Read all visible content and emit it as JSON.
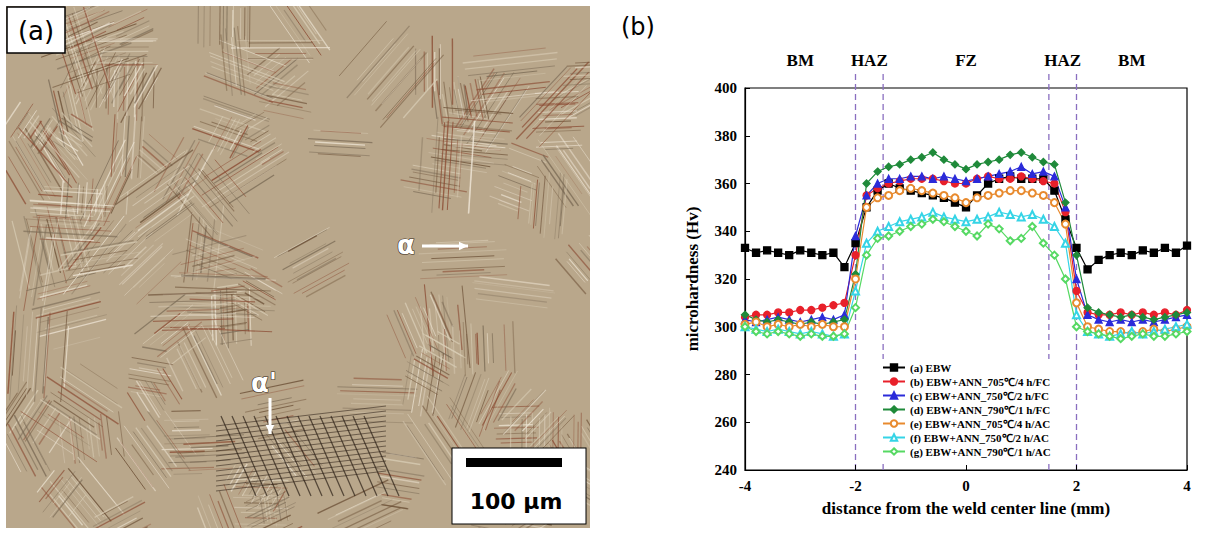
{
  "micrograph": {
    "panel_label": "(a)",
    "annotations": [
      "α",
      "α'"
    ],
    "scale_bar": "100 μm"
  },
  "chart_data": {
    "type": "line",
    "panel_label": "(b)",
    "x_label": "distance from the weld center line (mm)",
    "y_label": "microhardness (Hv)",
    "xlim": [
      -4,
      4
    ],
    "xticks": [
      -4,
      -2,
      0,
      2,
      4
    ],
    "ylim": [
      240,
      400
    ],
    "yticks": [
      240,
      260,
      280,
      300,
      320,
      340,
      360,
      380,
      400
    ],
    "grid": false,
    "legend": "bottom",
    "zones": [
      {
        "label": "BM",
        "from": -4,
        "to": -2
      },
      {
        "label": "HAZ",
        "from": -2,
        "to": -1.5
      },
      {
        "label": "FZ",
        "from": -1.5,
        "to": 1.5
      },
      {
        "label": "HAZ",
        "from": 1.5,
        "to": 2
      },
      {
        "label": "BM",
        "from": 2,
        "to": 4
      }
    ],
    "x": [
      -4,
      -3.8,
      -3.6,
      -3.4,
      -3.2,
      -3,
      -2.8,
      -2.6,
      -2.4,
      -2.2,
      -2,
      -1.8,
      -1.6,
      -1.4,
      -1.2,
      -1,
      -0.8,
      -0.6,
      -0.4,
      -0.2,
      0,
      0.2,
      0.4,
      0.6,
      0.8,
      1,
      1.2,
      1.4,
      1.6,
      1.8,
      2,
      2.2,
      2.4,
      2.6,
      2.8,
      3,
      3.2,
      3.4,
      3.6,
      3.8,
      4
    ],
    "series": [
      {
        "name": "(a) EBW",
        "color": "#000000",
        "marker": "square",
        "values": [
          333,
          331,
          332,
          331,
          330,
          332,
          331,
          330,
          331,
          325,
          335,
          350,
          357,
          360,
          358,
          357,
          356,
          355,
          354,
          352,
          350,
          355,
          360,
          362,
          363,
          362,
          362,
          362,
          357,
          345,
          333,
          324,
          328,
          330,
          331,
          330,
          332,
          331,
          333,
          331,
          334
        ]
      },
      {
        "name": "(b) EBW+ANN_705℃/4 h/FC",
        "color": "#e8202a",
        "marker": "circle",
        "values": [
          304,
          305,
          305,
          306,
          306,
          307,
          307,
          308,
          309,
          310,
          330,
          355,
          358,
          360,
          361,
          362,
          362,
          362,
          361,
          360,
          360,
          362,
          363,
          362,
          362,
          363,
          362,
          361,
          360,
          348,
          315,
          306,
          305,
          305,
          306,
          305,
          306,
          305,
          306,
          305,
          307
        ]
      },
      {
        "name": "(c) EBW+ANN_750℃/2 h/FC",
        "color": "#2b2bd9",
        "marker": "triangle",
        "values": [
          303,
          302,
          303,
          304,
          303,
          302,
          303,
          304,
          303,
          305,
          338,
          355,
          360,
          362,
          362,
          363,
          363,
          362,
          363,
          362,
          361,
          362,
          363,
          364,
          365,
          367,
          364,
          365,
          363,
          350,
          320,
          305,
          303,
          302,
          303,
          302,
          303,
          302,
          303,
          304,
          305
        ]
      },
      {
        "name": "(d) EBW+ANN_790℃/1 h/FC",
        "color": "#1f8a3a",
        "marker": "diamond",
        "values": [
          305,
          303,
          302,
          303,
          302,
          301,
          302,
          301,
          302,
          303,
          322,
          360,
          365,
          367,
          368,
          370,
          371,
          373,
          370,
          368,
          366,
          368,
          369,
          370,
          372,
          373,
          371,
          369,
          368,
          352,
          330,
          308,
          306,
          305,
          304,
          305,
          304,
          303,
          304,
          305,
          306
        ]
      },
      {
        "name": "(e) EBW+ANN_705℃/4 h/AC",
        "color": "#e88a2e",
        "marker": "open-circle",
        "values": [
          301,
          302,
          300,
          301,
          300,
          301,
          300,
          301,
          300,
          300,
          320,
          350,
          354,
          355,
          357,
          358,
          357,
          356,
          355,
          354,
          352,
          354,
          355,
          356,
          357,
          357,
          356,
          355,
          352,
          343,
          310,
          300,
          299,
          298,
          298,
          297,
          298,
          299,
          298,
          299,
          300
        ]
      },
      {
        "name": "(f) EBW+ANN_750℃/2 h/AC",
        "color": "#35d4e6",
        "marker": "open-triangle",
        "values": [
          300,
          299,
          298,
          299,
          298,
          297,
          298,
          297,
          296,
          297,
          315,
          335,
          340,
          342,
          344,
          345,
          346,
          348,
          346,
          345,
          344,
          345,
          346,
          348,
          347,
          346,
          347,
          345,
          342,
          335,
          305,
          298,
          297,
          296,
          297,
          298,
          297,
          298,
          299,
          300,
          301
        ]
      },
      {
        "name": "(g) EBW+ANN_790℃/1 h/AC",
        "color": "#56d963",
        "marker": "open-diamond",
        "values": [
          300,
          298,
          297,
          298,
          297,
          296,
          297,
          296,
          296,
          297,
          308,
          330,
          337,
          338,
          340,
          342,
          343,
          345,
          344,
          342,
          340,
          338,
          343,
          341,
          336,
          337,
          342,
          335,
          330,
          320,
          300,
          298,
          297,
          296,
          295,
          296,
          297,
          296,
          296,
          297,
          298
        ]
      }
    ]
  }
}
